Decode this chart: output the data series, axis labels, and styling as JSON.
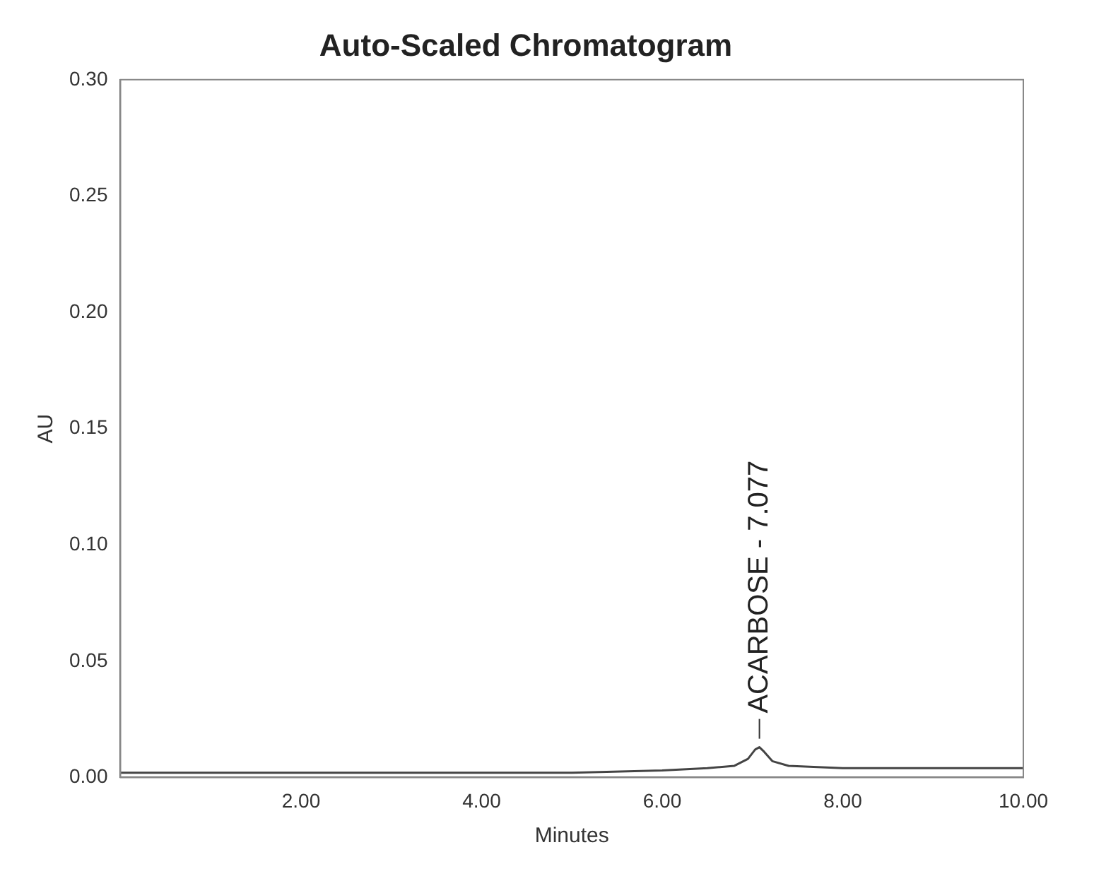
{
  "chart_data": {
    "type": "line",
    "title": "Auto-Scaled Chromatogram",
    "xlabel": "Minutes",
    "ylabel": "AU",
    "series": [
      {
        "color": "#444444",
        "x": [
          0,
          1,
          2,
          3,
          4,
          5,
          6,
          6.5,
          6.8,
          6.95,
          7.03,
          7.077,
          7.13,
          7.22,
          7.4,
          8,
          9,
          10
        ],
        "values": [
          0.002,
          0.002,
          0.002,
          0.002,
          0.002,
          0.002,
          0.003,
          0.004,
          0.005,
          0.008,
          0.012,
          0.013,
          0.011,
          0.007,
          0.005,
          0.004,
          0.004,
          0.004
        ]
      }
    ],
    "xlim": [
      0,
      10
    ],
    "xticks": [
      {
        "value": 2,
        "label": "2.00"
      },
      {
        "value": 4,
        "label": "4.00"
      },
      {
        "value": 6,
        "label": "6.00"
      },
      {
        "value": 8,
        "label": "8.00"
      },
      {
        "value": 10,
        "label": "10.00"
      }
    ],
    "ylim": [
      0,
      0.3
    ],
    "yticks": [
      {
        "value": 0,
        "label": "0.00"
      },
      {
        "value": 0.05,
        "label": "0.05"
      },
      {
        "value": 0.1,
        "label": "0.10"
      },
      {
        "value": 0.15,
        "label": "0.15"
      },
      {
        "value": 0.2,
        "label": "0.20"
      },
      {
        "value": 0.25,
        "label": "0.25"
      },
      {
        "value": 0.3,
        "label": "0.30"
      }
    ],
    "grid": false,
    "legend": false,
    "marker": "none",
    "line_style": "solid",
    "annotations": [
      {
        "text": "ACARBOSE - 7.077",
        "x": 7.077,
        "y": 0.013
      }
    ]
  }
}
